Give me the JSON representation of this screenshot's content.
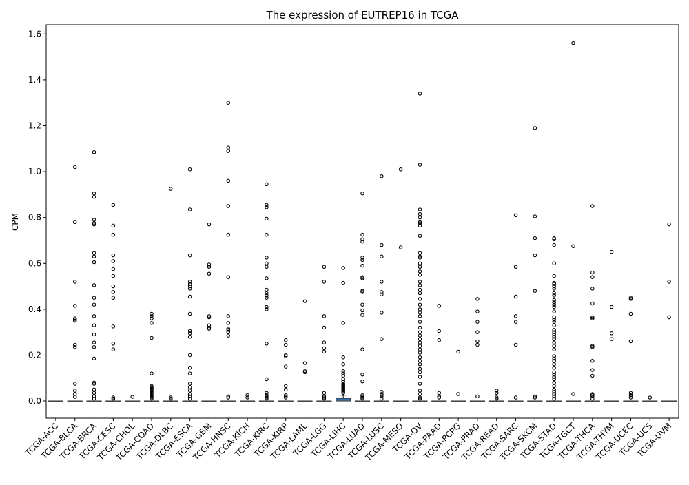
{
  "chart_data": {
    "type": "box",
    "title": "The expression of EUTREP16 in TCGA",
    "xlabel": "",
    "ylabel": "CPM",
    "ylim": [
      -0.075,
      1.64
    ],
    "yticks": [
      0.0,
      0.2,
      0.4,
      0.6,
      0.8,
      1.0,
      1.2,
      1.4,
      1.6
    ],
    "ytick_labels": [
      "0.0",
      "0.2",
      "0.4",
      "0.6",
      "0.8",
      "1.0",
      "1.2",
      "1.4",
      "1.6"
    ],
    "grid": false,
    "box_color": "#3a6fa8",
    "categories": [
      "TCGA-ACC",
      "TCGA-BLCA",
      "TCGA-BRCA",
      "TCGA-CESC",
      "TCGA-CHOL",
      "TCGA-COAD",
      "TCGA-DLBC",
      "TCGA-ESCA",
      "TCGA-GBM",
      "TCGA-HNSC",
      "TCGA-KICH",
      "TCGA-KIRC",
      "TCGA-KIRP",
      "TCGA-LAML",
      "TCGA-LGG",
      "TCGA-LIHC",
      "TCGA-LUAD",
      "TCGA-LUSC",
      "TCGA-MESO",
      "TCGA-OV",
      "TCGA-PAAD",
      "TCGA-PCPG",
      "TCGA-PRAD",
      "TCGA-READ",
      "TCGA-SARC",
      "TCGA-SKCM",
      "TCGA-STAD",
      "TCGA-TGCT",
      "TCGA-THCA",
      "TCGA-THYM",
      "TCGA-UCEC",
      "TCGA-UCS",
      "TCGA-UVM"
    ],
    "boxes": [
      {
        "q1": 0,
        "median": 0,
        "q3": 0,
        "whisker_low": 0,
        "whisker_high": 0,
        "outliers": []
      },
      {
        "q1": 0,
        "median": 0,
        "q3": 0,
        "whisker_low": 0,
        "whisker_high": 0,
        "outliers": [
          1.02,
          0.78,
          0.52,
          0.415,
          0.36,
          0.355,
          0.35,
          0.245,
          0.235,
          0.075,
          0.045,
          0.03,
          0.018
        ]
      },
      {
        "q1": 0,
        "median": 0,
        "q3": 0,
        "whisker_low": 0,
        "whisker_high": 0,
        "outliers": [
          1.085,
          0.905,
          0.89,
          0.79,
          0.775,
          0.77,
          0.645,
          0.63,
          0.605,
          0.505,
          0.45,
          0.42,
          0.37,
          0.33,
          0.29,
          0.255,
          0.235,
          0.185,
          0.08,
          0.075,
          0.05,
          0.035,
          0.02,
          0.01
        ]
      },
      {
        "q1": 0,
        "median": 0,
        "q3": 0,
        "whisker_low": 0,
        "whisker_high": 0,
        "outliers": [
          0.855,
          0.765,
          0.725,
          0.635,
          0.61,
          0.575,
          0.545,
          0.5,
          0.475,
          0.45,
          0.325,
          0.25,
          0.225,
          0.015,
          0.01
        ]
      },
      {
        "q1": 0,
        "median": 0,
        "q3": 0,
        "whisker_low": 0,
        "whisker_high": 0,
        "outliers": [
          0.018
        ]
      },
      {
        "q1": 0,
        "median": 0,
        "q3": 0,
        "whisker_low": 0,
        "whisker_high": 0,
        "outliers": [
          0.38,
          0.37,
          0.36,
          0.34,
          0.275,
          0.12,
          0.065,
          0.06,
          0.055,
          0.05,
          0.045,
          0.04,
          0.035,
          0.03,
          0.025,
          0.02,
          0.015,
          0.01
        ]
      },
      {
        "q1": 0,
        "median": 0,
        "q3": 0,
        "whisker_low": 0,
        "whisker_high": 0,
        "outliers": [
          0.925,
          0.015,
          0.01
        ]
      },
      {
        "q1": 0,
        "median": 0,
        "q3": 0,
        "whisker_low": 0,
        "whisker_high": 0,
        "outliers": [
          1.01,
          0.835,
          0.635,
          0.52,
          0.51,
          0.5,
          0.49,
          0.455,
          0.38,
          0.305,
          0.295,
          0.28,
          0.2,
          0.145,
          0.12,
          0.075,
          0.06,
          0.045,
          0.03,
          0.02,
          0.01
        ]
      },
      {
        "q1": 0,
        "median": 0,
        "q3": 0,
        "whisker_low": 0,
        "whisker_high": 0,
        "outliers": [
          0.77,
          0.595,
          0.585,
          0.555,
          0.37,
          0.365,
          0.33,
          0.32,
          0.315
        ]
      },
      {
        "q1": 0,
        "median": 0,
        "q3": 0,
        "whisker_low": 0,
        "whisker_high": 0,
        "outliers": [
          1.3,
          1.105,
          1.09,
          0.96,
          0.85,
          0.725,
          0.54,
          0.37,
          0.34,
          0.315,
          0.31,
          0.3,
          0.285,
          0.02,
          0.015
        ]
      },
      {
        "q1": 0,
        "median": 0,
        "q3": 0,
        "whisker_low": 0,
        "whisker_high": 0,
        "outliers": [
          0.025,
          0.015
        ]
      },
      {
        "q1": 0,
        "median": 0,
        "q3": 0,
        "whisker_low": 0,
        "whisker_high": 0,
        "outliers": [
          0.945,
          0.855,
          0.845,
          0.795,
          0.725,
          0.625,
          0.6,
          0.585,
          0.535,
          0.485,
          0.47,
          0.46,
          0.45,
          0.41,
          0.4,
          0.25,
          0.095,
          0.035,
          0.025,
          0.02,
          0.015,
          0.01
        ]
      },
      {
        "q1": 0,
        "median": 0,
        "q3": 0,
        "whisker_low": 0,
        "whisker_high": 0,
        "outliers": [
          0.265,
          0.245,
          0.2,
          0.195,
          0.15,
          0.065,
          0.05,
          0.025,
          0.02,
          0.015
        ]
      },
      {
        "q1": 0,
        "median": 0,
        "q3": 0,
        "whisker_low": 0,
        "whisker_high": 0,
        "outliers": [
          0.435,
          0.165,
          0.13,
          0.125
        ]
      },
      {
        "q1": 0,
        "median": 0,
        "q3": 0,
        "whisker_low": 0,
        "whisker_high": 0,
        "outliers": [
          0.585,
          0.52,
          0.37,
          0.32,
          0.255,
          0.23,
          0.215,
          0.035,
          0.02,
          0.015,
          0.01
        ]
      },
      {
        "q1": 0,
        "median": 0,
        "q3": 0.012,
        "whisker_low": 0,
        "whisker_high": 0.025,
        "outliers": [
          0.58,
          0.515,
          0.34,
          0.19,
          0.16,
          0.13,
          0.12,
          0.11,
          0.095,
          0.085,
          0.075,
          0.07,
          0.065,
          0.06,
          0.055,
          0.05,
          0.045,
          0.04,
          0.035
        ]
      },
      {
        "q1": 0,
        "median": 0,
        "q3": 0,
        "whisker_low": 0,
        "whisker_high": 0,
        "outliers": [
          0.905,
          0.725,
          0.705,
          0.695,
          0.625,
          0.615,
          0.59,
          0.54,
          0.535,
          0.48,
          0.475,
          0.42,
          0.395,
          0.375,
          0.225,
          0.115,
          0.085,
          0.025,
          0.02,
          0.015,
          0.01
        ]
      },
      {
        "q1": 0,
        "median": 0,
        "q3": 0,
        "whisker_low": 0,
        "whisker_high": 0,
        "outliers": [
          0.98,
          0.68,
          0.63,
          0.52,
          0.475,
          0.465,
          0.385,
          0.27,
          0.04,
          0.03,
          0.025,
          0.02,
          0.01
        ]
      },
      {
        "q1": 0,
        "median": 0,
        "q3": 0,
        "whisker_low": 0,
        "whisker_high": 0,
        "outliers": [
          1.01,
          0.67
        ]
      },
      {
        "q1": 0,
        "median": 0,
        "q3": 0,
        "whisker_low": 0,
        "whisker_high": 0,
        "outliers": [
          1.34,
          1.03,
          0.835,
          0.815,
          0.8,
          0.78,
          0.775,
          0.765,
          0.72,
          0.645,
          0.63,
          0.625,
          0.6,
          0.585,
          0.565,
          0.55,
          0.52,
          0.505,
          0.485,
          0.47,
          0.445,
          0.42,
          0.4,
          0.385,
          0.37,
          0.345,
          0.32,
          0.3,
          0.285,
          0.27,
          0.255,
          0.24,
          0.225,
          0.21,
          0.19,
          0.175,
          0.16,
          0.14,
          0.125,
          0.105,
          0.075,
          0.045,
          0.03,
          0.015,
          0.01
        ]
      },
      {
        "q1": 0,
        "median": 0,
        "q3": 0,
        "whisker_low": 0,
        "whisker_high": 0,
        "outliers": [
          0.415,
          0.305,
          0.265,
          0.035,
          0.02,
          0.015
        ]
      },
      {
        "q1": 0,
        "median": 0,
        "q3": 0,
        "whisker_low": 0,
        "whisker_high": 0,
        "outliers": [
          0.215,
          0.03
        ]
      },
      {
        "q1": 0,
        "median": 0,
        "q3": 0,
        "whisker_low": 0,
        "whisker_high": 0,
        "outliers": [
          0.445,
          0.39,
          0.345,
          0.3,
          0.26,
          0.245,
          0.02
        ]
      },
      {
        "q1": 0,
        "median": 0,
        "q3": 0,
        "whisker_low": 0,
        "whisker_high": 0,
        "outliers": [
          0.045,
          0.035,
          0.015,
          0.01
        ]
      },
      {
        "q1": 0,
        "median": 0,
        "q3": 0,
        "whisker_low": 0,
        "whisker_high": 0,
        "outliers": [
          0.81,
          0.585,
          0.455,
          0.37,
          0.345,
          0.245,
          0.015
        ]
      },
      {
        "q1": 0,
        "median": 0,
        "q3": 0,
        "whisker_low": 0,
        "whisker_high": 0,
        "outliers": [
          1.19,
          0.805,
          0.71,
          0.635,
          0.48,
          0.02,
          0.015
        ]
      },
      {
        "q1": 0,
        "median": 0,
        "q3": 0,
        "whisker_low": 0,
        "whisker_high": 0,
        "outliers": [
          0.71,
          0.705,
          0.68,
          0.6,
          0.545,
          0.515,
          0.51,
          0.5,
          0.49,
          0.47,
          0.46,
          0.44,
          0.43,
          0.42,
          0.41,
          0.39,
          0.365,
          0.355,
          0.345,
          0.33,
          0.31,
          0.3,
          0.29,
          0.28,
          0.27,
          0.255,
          0.24,
          0.225,
          0.195,
          0.185,
          0.175,
          0.16,
          0.145,
          0.125,
          0.115,
          0.105,
          0.095,
          0.08,
          0.065,
          0.05,
          0.04,
          0.03,
          0.02,
          0.01
        ]
      },
      {
        "q1": 0,
        "median": 0,
        "q3": 0,
        "whisker_low": 0,
        "whisker_high": 0,
        "outliers": [
          1.56,
          0.675,
          0.03
        ]
      },
      {
        "q1": 0,
        "median": 0,
        "q3": 0,
        "whisker_low": 0,
        "whisker_high": 0,
        "outliers": [
          0.85,
          0.56,
          0.54,
          0.49,
          0.425,
          0.365,
          0.36,
          0.24,
          0.235,
          0.175,
          0.135,
          0.11,
          0.03,
          0.025,
          0.02,
          0.01
        ]
      },
      {
        "q1": 0,
        "median": 0,
        "q3": 0,
        "whisker_low": 0,
        "whisker_high": 0,
        "outliers": [
          0.65,
          0.41,
          0.295,
          0.27
        ]
      },
      {
        "q1": 0,
        "median": 0,
        "q3": 0,
        "whisker_low": 0,
        "whisker_high": 0,
        "outliers": [
          0.45,
          0.445,
          0.38,
          0.26,
          0.035,
          0.025,
          0.015
        ]
      },
      {
        "q1": 0,
        "median": 0,
        "q3": 0,
        "whisker_low": 0,
        "whisker_high": 0,
        "outliers": [
          0.015
        ]
      },
      {
        "q1": 0,
        "median": 0,
        "q3": 0,
        "whisker_low": 0,
        "whisker_high": 0,
        "outliers": [
          0.77,
          0.52,
          0.365
        ]
      }
    ]
  }
}
